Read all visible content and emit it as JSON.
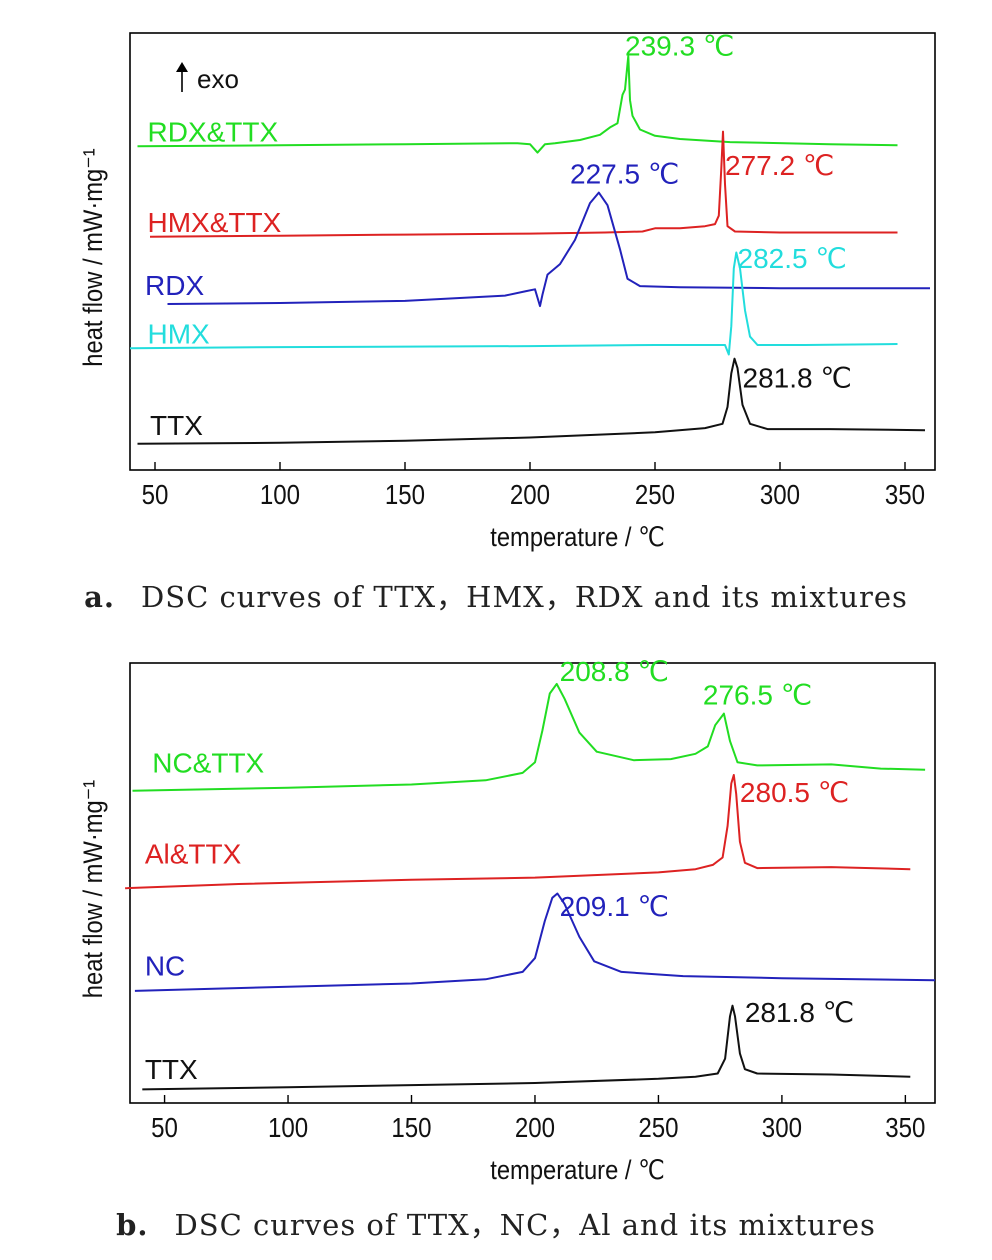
{
  "chart_data": [
    {
      "type": "line",
      "xlabel": "temperature / ℃",
      "ylabel": "heat flow / mW·mg⁻¹",
      "xlim": [
        40,
        362
      ],
      "xticks": [
        50,
        100,
        150,
        200,
        250,
        300,
        350
      ],
      "grid": false,
      "legend": "labels placed next to each curve",
      "exo_label": "exo",
      "caption_letter": "a.",
      "caption_text": "DSC curves of TTX，HMX，RDX and its mixtures",
      "series": [
        {
          "name": "RDX&TTX",
          "color": "#22dd22",
          "label_at": [
            47,
            150
          ],
          "peak_label": "239.3 ℃",
          "peak_label_at": [
            238,
            68
          ],
          "points": [
            [
              43,
              164
            ],
            [
              100,
              163
            ],
            [
              150,
              162
            ],
            [
              195,
              161
            ],
            [
              200,
              162
            ],
            [
              203,
              170
            ],
            [
              206,
              162
            ],
            [
              210,
              161
            ],
            [
              220,
              158
            ],
            [
              228,
              153
            ],
            [
              232,
              146
            ],
            [
              235,
              142
            ],
            [
              237,
              115
            ],
            [
              238,
              110
            ],
            [
              239.3,
              78
            ],
            [
              240,
              120
            ],
            [
              241,
              135
            ],
            [
              244,
              148
            ],
            [
              250,
              154
            ],
            [
              260,
              157
            ],
            [
              280,
              160
            ],
            [
              320,
              162
            ],
            [
              347,
              163
            ]
          ]
        },
        {
          "name": "HMX&TTX",
          "color": "#dd2222",
          "label_at": [
            47,
            236
          ],
          "peak_label": "277.2 ℃",
          "peak_label_at": [
            278,
            182
          ],
          "points": [
            [
              48,
              250
            ],
            [
              100,
              249
            ],
            [
              150,
              248
            ],
            [
              200,
              247
            ],
            [
              230,
              246
            ],
            [
              245,
              245
            ],
            [
              250,
              242
            ],
            [
              260,
              242
            ],
            [
              270,
              240
            ],
            [
              274,
              238
            ],
            [
              275.5,
              230
            ],
            [
              276.5,
              185
            ],
            [
              277.2,
              150
            ],
            [
              278,
              200
            ],
            [
              279,
              240
            ],
            [
              282,
              245
            ],
            [
              300,
              246
            ],
            [
              347,
              246
            ]
          ]
        },
        {
          "name": "RDX",
          "color": "#2222bb",
          "label_at": [
            46,
            296
          ],
          "peak_label": "227.5 ℃",
          "peak_label_at": [
            216,
            190
          ],
          "points": [
            [
              55,
              314
            ],
            [
              100,
              313
            ],
            [
              150,
              311
            ],
            [
              190,
              306
            ],
            [
              198,
              302
            ],
            [
              202,
              300
            ],
            [
              204,
              316
            ],
            [
              205,
              305
            ],
            [
              207,
              286
            ],
            [
              212,
              276
            ],
            [
              218,
              253
            ],
            [
              224,
              218
            ],
            [
              227.5,
              208
            ],
            [
              231,
              220
            ],
            [
              236,
              262
            ],
            [
              239,
              290
            ],
            [
              244,
              297
            ],
            [
              260,
              298
            ],
            [
              300,
              299
            ],
            [
              360,
              299
            ]
          ]
        },
        {
          "name": "HMX",
          "color": "#22dddd",
          "label_at": [
            47,
            342
          ],
          "peak_label": "282.5 ℃",
          "peak_label_at": [
            283,
            270
          ],
          "points": [
            [
              40,
              356
            ],
            [
              100,
              355
            ],
            [
              200,
              354
            ],
            [
              250,
              353
            ],
            [
              278,
              353
            ],
            [
              279.5,
              362
            ],
            [
              280.5,
              335
            ],
            [
              281.5,
              280
            ],
            [
              282.5,
              265
            ],
            [
              284,
              280
            ],
            [
              286,
              320
            ],
            [
              288,
              345
            ],
            [
              291,
              353
            ],
            [
              310,
              353
            ],
            [
              347,
              352
            ]
          ]
        },
        {
          "name": "TTX",
          "color": "#111111",
          "label_at": [
            48,
            429
          ],
          "peak_label": "281.8 ℃",
          "peak_label_at": [
            285,
            384
          ],
          "points": [
            [
              43,
              447
            ],
            [
              100,
              446
            ],
            [
              150,
              444
            ],
            [
              200,
              441
            ],
            [
              250,
              436
            ],
            [
              270,
              432
            ],
            [
              277,
              428
            ],
            [
              279,
              412
            ],
            [
              280.5,
              380
            ],
            [
              281.8,
              366
            ],
            [
              283,
              375
            ],
            [
              285,
              410
            ],
            [
              288,
              428
            ],
            [
              295,
              433
            ],
            [
              320,
              433
            ],
            [
              358,
              434
            ]
          ]
        }
      ]
    },
    {
      "type": "line",
      "xlabel": "temperature / ℃",
      "ylabel": "heat flow / mW·mg⁻¹",
      "xlim": [
        36,
        362
      ],
      "xticks": [
        50,
        100,
        150,
        200,
        250,
        300,
        350
      ],
      "grid": false,
      "legend": "labels placed next to each curve",
      "caption_letter": "b.",
      "caption_text": "DSC curves of TTX，NC，Al and its mixtures",
      "series": [
        {
          "name": "NC&TTX",
          "color": "#22dd22",
          "label_at": [
            45,
            780
          ],
          "peak_label": "208.8 ℃",
          "peak_label_at": [
            210,
            694
          ],
          "extra_label": "276.5 ℃",
          "extra_label_at": [
            268,
            716
          ],
          "points": [
            [
              37,
              807
            ],
            [
              100,
              804
            ],
            [
              150,
              801
            ],
            [
              180,
              797
            ],
            [
              195,
              790
            ],
            [
              200,
              780
            ],
            [
              203,
              750
            ],
            [
              206,
              715
            ],
            [
              208.8,
              706
            ],
            [
              212,
              720
            ],
            [
              218,
              752
            ],
            [
              225,
              770
            ],
            [
              240,
              778
            ],
            [
              255,
              777
            ],
            [
              265,
              772
            ],
            [
              270,
              765
            ],
            [
              273,
              745
            ],
            [
              276.5,
              734
            ],
            [
              279,
              760
            ],
            [
              282,
              780
            ],
            [
              290,
              783
            ],
            [
              320,
              782
            ],
            [
              340,
              786
            ],
            [
              358,
              787
            ]
          ]
        },
        {
          "name": "Al&TTX",
          "color": "#dd2222",
          "label_at": [
            42,
            866
          ],
          "peak_label": "280.5 ℃",
          "peak_label_at": [
            283,
            808
          ],
          "points": [
            [
              34,
              899
            ],
            [
              80,
              895
            ],
            [
              150,
              891
            ],
            [
              200,
              889
            ],
            [
              250,
              884
            ],
            [
              265,
              881
            ],
            [
              272,
              877
            ],
            [
              276,
              870
            ],
            [
              278,
              840
            ],
            [
              279.5,
              800
            ],
            [
              280.5,
              792
            ],
            [
              281.5,
              810
            ],
            [
              283,
              855
            ],
            [
              285,
              875
            ],
            [
              290,
              880
            ],
            [
              320,
              879
            ],
            [
              352,
              881
            ]
          ]
        },
        {
          "name": "NC",
          "color": "#2222bb",
          "label_at": [
            42,
            972
          ],
          "peak_label": "209.1 ℃",
          "peak_label_at": [
            210,
            916
          ],
          "points": [
            [
              38,
              996
            ],
            [
              100,
              992
            ],
            [
              150,
              989
            ],
            [
              180,
              985
            ],
            [
              195,
              978
            ],
            [
              200,
              965
            ],
            [
              204,
              930
            ],
            [
              207,
              908
            ],
            [
              209.1,
              904
            ],
            [
              212,
              914
            ],
            [
              218,
              945
            ],
            [
              224,
              968
            ],
            [
              235,
              978
            ],
            [
              260,
              982
            ],
            [
              300,
              984
            ],
            [
              362,
              986
            ]
          ]
        },
        {
          "name": "TTX",
          "color": "#111111",
          "label_at": [
            42,
            1070
          ],
          "peak_label": "281.8 ℃",
          "peak_label_at": [
            285,
            1016
          ],
          "points": [
            [
              41,
              1089
            ],
            [
              100,
              1087
            ],
            [
              150,
              1085
            ],
            [
              200,
              1083
            ],
            [
              250,
              1079
            ],
            [
              265,
              1077
            ],
            [
              274,
              1074
            ],
            [
              277,
              1060
            ],
            [
              279,
              1020
            ],
            [
              280,
              1010
            ],
            [
              281,
              1020
            ],
            [
              283,
              1055
            ],
            [
              285,
              1070
            ],
            [
              290,
              1074
            ],
            [
              320,
              1075
            ],
            [
              352,
              1077
            ]
          ]
        }
      ]
    }
  ]
}
